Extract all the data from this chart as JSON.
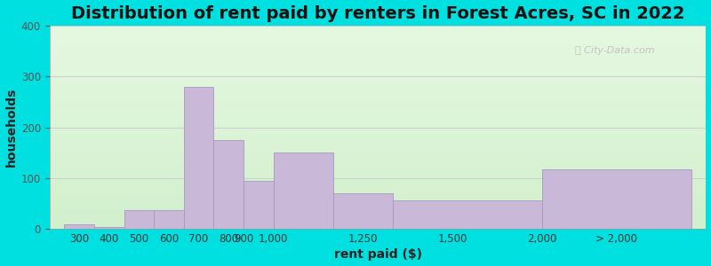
{
  "title": "Distribution of rent paid by renters in Forest Acres, SC in 2022",
  "xlabel": "rent paid ($)",
  "ylabel": "households",
  "bar_color": "#c9b8d8",
  "bar_edge_color": "#a898c0",
  "background_outer": "#00e0e0",
  "ylim": [
    0,
    400
  ],
  "yticks": [
    0,
    100,
    200,
    300,
    400
  ],
  "values": [
    10,
    5,
    37,
    37,
    280,
    175,
    95,
    150,
    70,
    57,
    117
  ],
  "bar_lefts": [
    0,
    1,
    2,
    3,
    4,
    5,
    6,
    7,
    9,
    11,
    16
  ],
  "bar_widths": [
    1,
    1,
    1,
    1,
    1,
    1,
    1,
    2,
    2,
    5,
    5
  ],
  "tick_positions": [
    0.5,
    1.5,
    2.5,
    3.5,
    4.5,
    5.5,
    6.5,
    7,
    9,
    11,
    13.5,
    18.5
  ],
  "tick_labels": [
    "300",
    "400",
    "500",
    "600",
    "700",
    "800",
    "900",
    "1,000",
    "1,250",
    "1,500",
    "2,000",
    "> 2,000"
  ],
  "title_fontsize": 14,
  "axis_label_fontsize": 10,
  "tick_fontsize": 8.5,
  "watermark_text": "City-Data.com"
}
